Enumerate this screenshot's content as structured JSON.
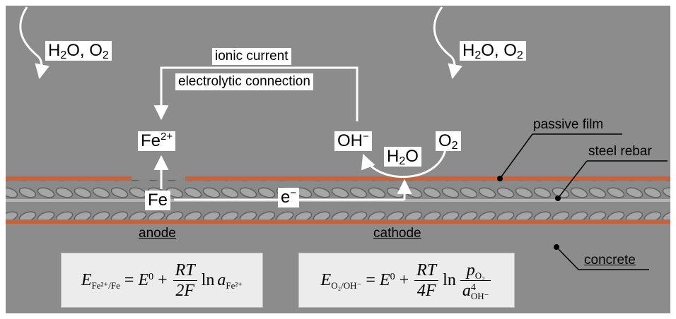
{
  "labels": {
    "h2o_o2_left": {
      "a": "H",
      "a_sub": "2",
      "b": "O, O",
      "b_sub": "2"
    },
    "h2o_o2_right": {
      "a": "H",
      "a_sub": "2",
      "b": "O, O",
      "b_sub": "2"
    },
    "ionic_current": "ionic current",
    "electrolytic_connection": "electrolytic connection",
    "fe2plus": {
      "base": "Fe",
      "sup": "2+"
    },
    "fe": "Fe",
    "electron": {
      "base": "e",
      "sup": "−"
    },
    "oh_minus": {
      "base": "OH",
      "sup": "−"
    },
    "h2o": {
      "a": "H",
      "a_sub": "2",
      "b": "O"
    },
    "o2": {
      "a": "O",
      "a_sub": "2"
    },
    "passive_film": "passive film",
    "steel_rebar": "steel rebar",
    "concrete": "concrete",
    "anode": "anode",
    "cathode": "cathode"
  },
  "equations": {
    "anode": {
      "E": "E",
      "E_sub": "Fe²⁺/Fe",
      "eq": "=",
      "E0": "E",
      "E0_sup": "0",
      "plus": "+",
      "num": "RT",
      "den": "2F",
      "ln": "ln",
      "a": "a",
      "a_sub": "Fe²⁺"
    },
    "cathode": {
      "E": "E",
      "E_sub": "O₂/OH⁻",
      "eq": "=",
      "E0": "E",
      "E0_sup": "0",
      "plus": "+",
      "num": "RT",
      "den": "4F",
      "ln": "ln",
      "p": "p",
      "p_sub": "O₂",
      "a": "a",
      "a_sup": "4",
      "a_sub": "OH⁻"
    }
  },
  "colors": {
    "concrete": "#8c8c8c",
    "passive_film": "#c2643f",
    "rebar": "#9a9a9a",
    "rib": "#6e6e6e",
    "white": "#ffffff"
  }
}
